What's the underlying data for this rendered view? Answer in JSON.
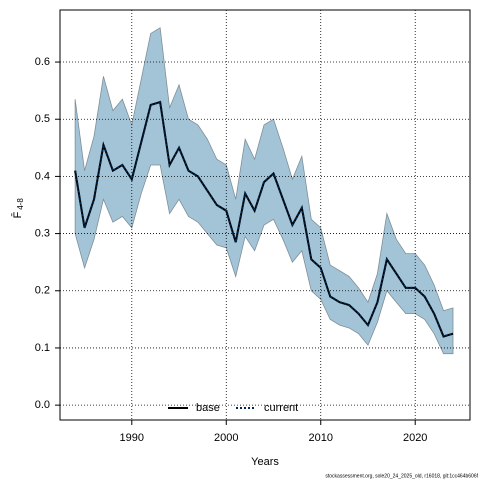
{
  "chart_data": {
    "type": "line",
    "xlabel": "Years",
    "ylabel_main": "F̄",
    "ylabel_sub": "4-8",
    "footnote": "stockassessment.org, sole20_24_2025_old, r16018, git:1cc464b606f",
    "x": [
      1984,
      1985,
      1986,
      1987,
      1988,
      1989,
      1990,
      1991,
      1992,
      1993,
      1994,
      1995,
      1996,
      1997,
      1998,
      1999,
      2000,
      2001,
      2002,
      2003,
      2004,
      2005,
      2006,
      2007,
      2008,
      2009,
      2010,
      2011,
      2012,
      2013,
      2014,
      2015,
      2016,
      2017,
      2018,
      2019,
      2020,
      2021,
      2022,
      2023,
      2024
    ],
    "series": [
      {
        "name": "base",
        "color": "#000000",
        "style": "solid",
        "values": [
          0.41,
          0.31,
          0.36,
          0.455,
          0.41,
          0.42,
          0.395,
          0.46,
          0.525,
          0.53,
          0.42,
          0.45,
          0.41,
          0.4,
          0.375,
          0.35,
          0.34,
          0.285,
          0.37,
          0.34,
          0.39,
          0.405,
          0.36,
          0.315,
          0.345,
          0.255,
          0.24,
          0.19,
          0.18,
          0.175,
          0.16,
          0.14,
          0.18,
          0.255,
          0.23,
          0.205,
          0.205,
          0.19,
          0.16,
          0.12,
          0.125
        ]
      },
      {
        "name": "current",
        "color": "#00264d",
        "style": "dotted",
        "values": [
          0.41,
          0.31,
          0.36,
          0.455,
          0.41,
          0.42,
          0.395,
          0.46,
          0.525,
          0.53,
          0.42,
          0.45,
          0.41,
          0.4,
          0.375,
          0.35,
          0.34,
          0.285,
          0.37,
          0.34,
          0.39,
          0.405,
          0.36,
          0.315,
          0.345,
          0.255,
          0.24,
          0.19,
          0.18,
          0.175,
          0.16,
          0.14,
          0.18,
          0.255,
          0.23,
          0.205,
          0.205,
          0.19,
          0.16,
          0.12,
          0.125
        ]
      }
    ],
    "band": {
      "color": "#a3c4d6",
      "lower": [
        0.3,
        0.24,
        0.29,
        0.36,
        0.32,
        0.33,
        0.31,
        0.37,
        0.42,
        0.42,
        0.335,
        0.36,
        0.33,
        0.32,
        0.3,
        0.28,
        0.275,
        0.225,
        0.295,
        0.27,
        0.315,
        0.325,
        0.29,
        0.25,
        0.27,
        0.2,
        0.185,
        0.15,
        0.14,
        0.135,
        0.125,
        0.105,
        0.145,
        0.2,
        0.18,
        0.16,
        0.16,
        0.15,
        0.125,
        0.09,
        0.09
      ],
      "upper": [
        0.535,
        0.41,
        0.47,
        0.575,
        0.515,
        0.535,
        0.49,
        0.57,
        0.65,
        0.66,
        0.52,
        0.56,
        0.5,
        0.49,
        0.465,
        0.43,
        0.42,
        0.36,
        0.465,
        0.43,
        0.49,
        0.5,
        0.45,
        0.395,
        0.435,
        0.325,
        0.31,
        0.245,
        0.235,
        0.225,
        0.205,
        0.18,
        0.23,
        0.335,
        0.29,
        0.265,
        0.265,
        0.245,
        0.21,
        0.165,
        0.17
      ]
    },
    "xlim": [
      1982.4,
      2025.8
    ],
    "ylim": [
      -0.026,
      0.691
    ],
    "xticks": [
      1990,
      2000,
      2010,
      2020
    ],
    "yticks": [
      {
        "value": 0,
        "label": "0.0"
      },
      0.1,
      0.2,
      0.3,
      0.4,
      0.5,
      0.6
    ],
    "grid": true,
    "legend": "bottom"
  }
}
